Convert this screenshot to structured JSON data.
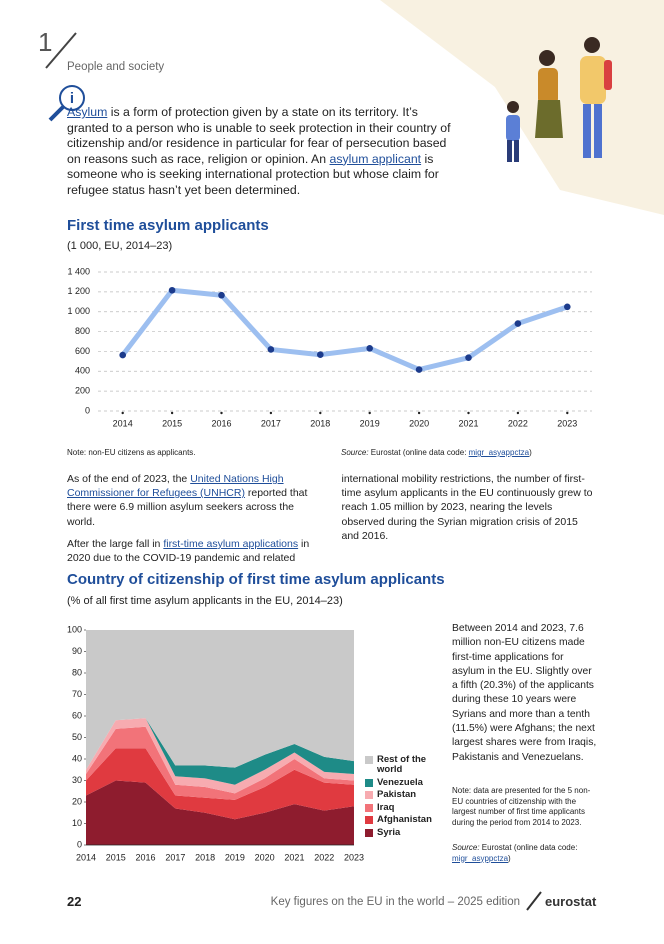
{
  "header": {
    "chapter": "1",
    "section": "People and society"
  },
  "definition": {
    "term1": "Asylum",
    "text1": " is a form of protection given by a state on its territory. It’s granted to a person who is unable to seek protection in their country of citizenship and/or residence in particular for fear of persecution based on reasons such as race, religion or opinion. An ",
    "term2": "asylum applicant",
    "text2": " is someone who is seeking international protection but whose claim for refugee status hasn’t yet been determined."
  },
  "chart_data": [
    {
      "type": "line",
      "title": "First time asylum applicants",
      "subtitle": "(1 000, EU, 2014–23)",
      "categories": [
        "2014",
        "2015",
        "2016",
        "2017",
        "2018",
        "2019",
        "2020",
        "2021",
        "2022",
        "2023"
      ],
      "values": [
        563,
        1216,
        1166,
        620,
        567,
        631,
        417,
        537,
        881,
        1049
      ],
      "color": "#9dbff0",
      "marker_color": "#1c3b8c",
      "ylim": [
        0,
        1400
      ],
      "yticks": [
        0,
        200,
        400,
        600,
        800,
        {
          "value": 1000,
          "label": "1 000"
        },
        {
          "value": 1200,
          "label": "1 200"
        },
        {
          "value": 1400,
          "label": "1 400"
        }
      ],
      "grid": true,
      "note": "Note: non-EU citizens as applicants.",
      "source": {
        "label": "Source:",
        "text": " Eurostat (online data code: ",
        "code": "migr_asyappctza",
        "end": ")"
      }
    },
    {
      "type": "stacked_area",
      "title": "Country of citizenship of first time asylum applicants",
      "subtitle": "(% of all first time asylum applicants in the EU, 2014–23)",
      "x": [
        2014,
        2015,
        2016,
        2017,
        2018,
        2019,
        2020,
        2021,
        2022,
        2023
      ],
      "xlim": [
        2014,
        2023
      ],
      "ylim": [
        0,
        100
      ],
      "yticks": [
        0,
        10,
        20,
        30,
        40,
        50,
        60,
        70,
        80,
        90,
        100
      ],
      "series": [
        {
          "name": "Syria",
          "color": "#8e1c2e",
          "values": [
            23,
            30,
            29,
            17,
            15,
            12,
            15,
            19,
            16,
            18
          ]
        },
        {
          "name": "Afghanistan",
          "color": "#e03a40",
          "values": [
            7,
            15,
            16,
            6,
            7,
            9,
            12,
            16,
            13,
            10
          ]
        },
        {
          "name": "Iraq",
          "color": "#f27379",
          "values": [
            3,
            9,
            10,
            5,
            5,
            3,
            4,
            5,
            2,
            2
          ]
        },
        {
          "name": "Pakistan",
          "color": "#f7abb0",
          "values": [
            2,
            4,
            4,
            4,
            4,
            4,
            4,
            3,
            3,
            3
          ]
        },
        {
          "name": "Venezuela",
          "color": "#1e8b87",
          "values": [
            0,
            0,
            0,
            5,
            6,
            8,
            7,
            4,
            7,
            6
          ]
        },
        {
          "name": "Rest of the world",
          "color": "#c9c9c9",
          "values": [
            65,
            42,
            41,
            63,
            63,
            64,
            58,
            53,
            59,
            61
          ]
        }
      ],
      "legend": "right",
      "note": "Note: data are presented for the 5 non-EU countries of citizenship with the largest number of first time applicants during the period from 2014 to 2023.",
      "source": {
        "label": "Source:",
        "text": " Eurostat (online data code: ",
        "code": "migr_asyppctza",
        "end": ")"
      }
    }
  ],
  "body": {
    "p1a": "As of the end of 2023, the ",
    "p1link": "United Nations High Commissioner for Refugees (UNHCR)",
    "p1b": " reported that there were 6.9 million asylum seekers across the world.",
    "p2a": "After the large fall in ",
    "p2link": "first-time asylum applications",
    "p2b": " in 2020 due to the COVID-19 pandemic and related international mobility restrictions, the number of first-time asylum applicants in the EU continuously grew to reach 1.05 million by 2023, nearing the levels observed during the Syrian migration crisis of 2015 and 2016.",
    "p3": "Between 2014 and 2023, 7.6 million non-EU citizens made first-time applications for asylum in the EU. Slightly over a fifth (20.3%) of the applicants during these 10 years were Syrians and more than a tenth (11.5%) were Afghans; the next largest shares were from Iraqis, Pakistanis and Venezuelans."
  },
  "footer": {
    "page": "22",
    "publication": "Key figures on the EU in the world – 2025 edition",
    "brand": "eurostat"
  }
}
